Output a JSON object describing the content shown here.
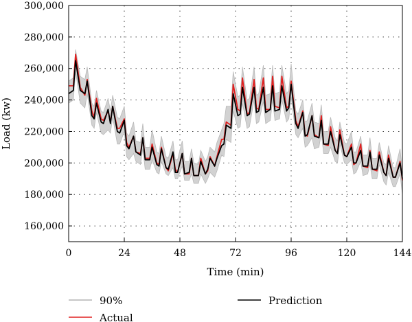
{
  "chart_data": {
    "type": "line",
    "title": "",
    "xlabel": "Time (min)",
    "ylabel": "Load (kw)",
    "xlim": [
      0,
      144
    ],
    "ylim": [
      150000,
      300000
    ],
    "x_ticks": [
      0,
      24,
      48,
      72,
      96,
      120,
      144
    ],
    "x_tick_labels": [
      "0",
      "24",
      "48",
      "72",
      "96",
      "120",
      "144"
    ],
    "y_ticks": [
      160000,
      180000,
      200000,
      220000,
      240000,
      260000,
      280000,
      300000
    ],
    "y_tick_labels": [
      "160,000",
      "180,000",
      "200,000",
      "220,000",
      "240,000",
      "260,000",
      "280,000",
      "300,000"
    ],
    "grid": "dotted",
    "legend_position": "bottom",
    "x": [
      0,
      2,
      3,
      5,
      7,
      8,
      10,
      11,
      12,
      14,
      15,
      17,
      18,
      19,
      21,
      22,
      24,
      25,
      26,
      28,
      29,
      31,
      32,
      33,
      35,
      36,
      38,
      39,
      40,
      42,
      43,
      45,
      46,
      47,
      49,
      50,
      52,
      53,
      54,
      56,
      57,
      59,
      60,
      61,
      63,
      64,
      66,
      67,
      68,
      70,
      71,
      73,
      74,
      75,
      77,
      78,
      80,
      81,
      82,
      84,
      85,
      87,
      88,
      89,
      91,
      92,
      94,
      95,
      96,
      98,
      99,
      101,
      102,
      103,
      105,
      106,
      108,
      109,
      110,
      112,
      113,
      115,
      116,
      117,
      119,
      120,
      122,
      123,
      124,
      126,
      127,
      129,
      130,
      131,
      133,
      134,
      136,
      137,
      138,
      140,
      141,
      143,
      144
    ],
    "series": [
      {
        "name": "90%",
        "color": "#c8c8c8",
        "lower": [
          238000,
          240000,
          258000,
          238000,
          235000,
          244000,
          224000,
          222000,
          232000,
          219000,
          218000,
          221000,
          219000,
          229000,
          212000,
          212000,
          220000,
          204000,
          202000,
          206000,
          201000,
          199000,
          209000,
          196000,
          196000,
          202000,
          194000,
          193000,
          201000,
          193000,
          192000,
          197000,
          190000,
          190000,
          198000,
          189000,
          189000,
          193000,
          187000,
          187000,
          193000,
          187000,
          190000,
          194000,
          191000,
          195000,
          205000,
          204000,
          215000,
          213000,
          233000,
          222000,
          223000,
          238000,
          222000,
          223000,
          240000,
          225000,
          226000,
          239000,
          225000,
          227000,
          240000,
          227000,
          228000,
          240000,
          226000,
          228000,
          242000,
          218000,
          216000,
          222000,
          210000,
          211000,
          216000,
          209000,
          210000,
          219000,
          206000,
          206000,
          210000,
          201000,
          200000,
          212000,
          200000,
          199000,
          202000,
          193000,
          194000,
          201000,
          192000,
          193000,
          199000,
          190000,
          190000,
          199000,
          188000,
          186000,
          194000,
          185000,
          185000,
          193000,
          180000
        ],
        "upper": [
          252000,
          254000,
          272000,
          255000,
          253000,
          261000,
          238000,
          236000,
          246000,
          233000,
          232000,
          241000,
          233000,
          243000,
          229000,
          228000,
          236000,
          219000,
          217000,
          226000,
          214000,
          213000,
          225000,
          210000,
          210000,
          221000,
          207000,
          206000,
          217000,
          204000,
          203000,
          214000,
          202000,
          202000,
          214000,
          201000,
          201000,
          209000,
          200000,
          199000,
          208000,
          201000,
          204000,
          210000,
          207000,
          213000,
          221000,
          225000,
          236000,
          236000,
          258000,
          242000,
          243000,
          261000,
          240000,
          241000,
          261000,
          243000,
          244000,
          262000,
          243000,
          244000,
          262000,
          244000,
          245000,
          262000,
          244000,
          246000,
          263000,
          233000,
          231000,
          240000,
          226000,
          227000,
          238000,
          226000,
          225000,
          237000,
          220000,
          220000,
          229000,
          216000,
          214000,
          226000,
          213000,
          212000,
          220000,
          207000,
          207000,
          217000,
          205000,
          205000,
          216000,
          203000,
          203000,
          213000,
          200000,
          199000,
          211000,
          197000,
          197000,
          209000,
          194000
        ]
      },
      {
        "name": "Actual",
        "color": "#e02020",
        "values": [
          249000,
          249000,
          269000,
          248000,
          243000,
          253000,
          233000,
          229000,
          241000,
          228000,
          227000,
          233000,
          226000,
          236000,
          222000,
          222000,
          228000,
          213000,
          210000,
          217000,
          207000,
          206000,
          216000,
          203000,
          203000,
          212000,
          200000,
          199000,
          210000,
          197000,
          195000,
          206000,
          196000,
          194000,
          206000,
          193000,
          193000,
          203000,
          192000,
          192000,
          203000,
          193000,
          195000,
          204000,
          198000,
          204000,
          215000,
          215000,
          226000,
          224000,
          250000,
          234000,
          233000,
          254000,
          231000,
          232000,
          253000,
          235000,
          234000,
          254000,
          234000,
          234000,
          255000,
          236000,
          235000,
          255000,
          235000,
          236000,
          252000,
          227000,
          223000,
          233000,
          218000,
          217000,
          230000,
          218000,
          216000,
          230000,
          212000,
          211000,
          223000,
          208000,
          206000,
          221000,
          205000,
          204000,
          212000,
          199000,
          200000,
          212000,
          198000,
          197000,
          208000,
          196000,
          195000,
          207000,
          194000,
          192000,
          205000,
          191000,
          191000,
          201000,
          189000
        ]
      },
      {
        "name": "Prediction",
        "color": "#000000",
        "values": [
          244000,
          246000,
          265000,
          246000,
          244000,
          252000,
          230000,
          228000,
          238000,
          226000,
          225000,
          234000,
          225000,
          236000,
          220000,
          219000,
          227000,
          211000,
          209000,
          217000,
          207000,
          205000,
          216000,
          202000,
          202000,
          210000,
          199000,
          198000,
          209000,
          197000,
          196000,
          207000,
          194000,
          194000,
          206000,
          193000,
          194000,
          203000,
          192000,
          192000,
          201000,
          193000,
          196000,
          203000,
          198000,
          203000,
          211000,
          212000,
          224000,
          222000,
          244000,
          230000,
          231000,
          248000,
          230000,
          231000,
          248000,
          232000,
          233000,
          248000,
          232000,
          234000,
          249000,
          233000,
          234000,
          249000,
          233000,
          235000,
          250000,
          225000,
          222000,
          232000,
          217000,
          218000,
          230000,
          217000,
          216000,
          227000,
          212000,
          212000,
          220000,
          208000,
          206000,
          218000,
          205000,
          204000,
          210000,
          200000,
          200000,
          208000,
          198000,
          198000,
          207000,
          196000,
          196000,
          205000,
          194000,
          192000,
          203000,
          191000,
          191000,
          200000,
          190000
        ]
      }
    ]
  }
}
